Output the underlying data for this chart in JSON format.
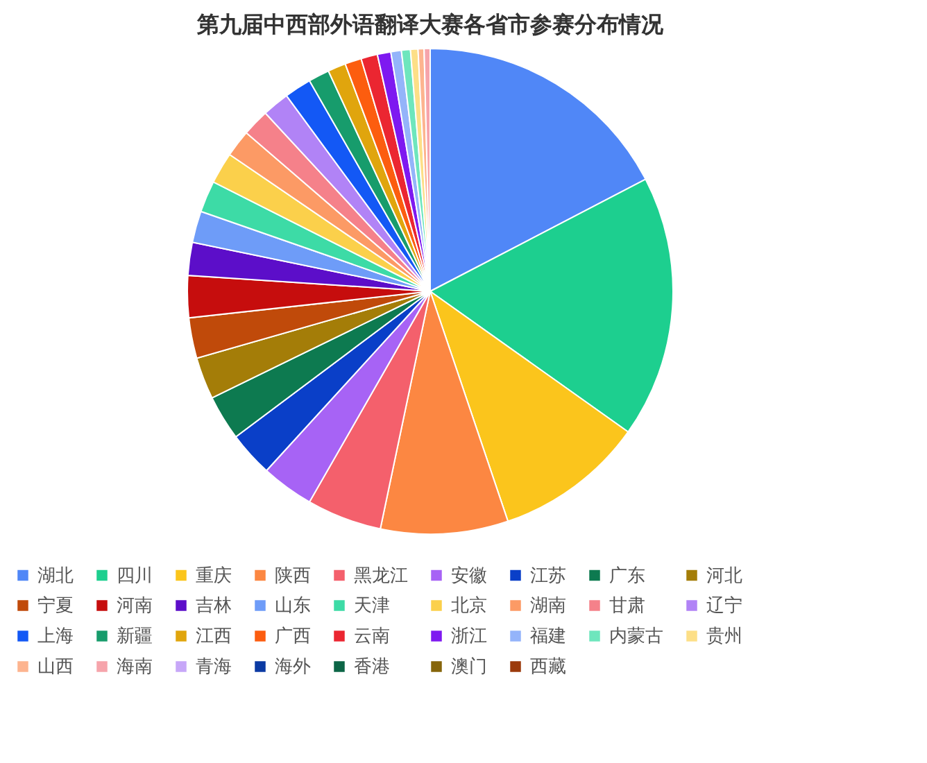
{
  "chart_data": {
    "type": "pie",
    "title": "第九届中西部外语翻译大赛各省市参赛分布情况",
    "categories": [
      "湖北",
      "四川",
      "重庆",
      "陕西",
      "黑龙江",
      "安徽",
      "江苏",
      "广东",
      "河北",
      "宁夏",
      "河南",
      "吉林",
      "山东",
      "天津",
      "北京",
      "湖南",
      "甘肃",
      "辽宁",
      "上海",
      "新疆",
      "江西",
      "广西",
      "云南",
      "浙江",
      "福建",
      "内蒙古",
      "贵州",
      "山西",
      "海南",
      "青海",
      "海外",
      "香港",
      "澳门",
      "西藏"
    ],
    "values": [
      17.4,
      17.5,
      10,
      8.5,
      5,
      3.5,
      3,
      3,
      2.8,
      2.7,
      2.8,
      2.2,
      2.1,
      2.1,
      2.1,
      1.8,
      1.8,
      1.8,
      1.8,
      1.4,
      1.2,
      1.1,
      1.1,
      0.9,
      0.7,
      0.6,
      0.5,
      0.4,
      0.4,
      0,
      0,
      0,
      0,
      0
    ],
    "colors": [
      "#5087f7",
      "#1dcf8f",
      "#fbc51c",
      "#fc8742",
      "#f4606c",
      "#a763f5",
      "#0a3fc8",
      "#0d7a50",
      "#a47d08",
      "#c04a0a",
      "#c60d0d",
      "#5c0ec9",
      "#6e9cf8",
      "#3ddba6",
      "#fbd04b",
      "#fc9a65",
      "#f5818a",
      "#b183f6",
      "#1358f5",
      "#179c6c",
      "#e0a50d",
      "#fc5d0f",
      "#eb2631",
      "#7e19f0",
      "#94b4fa",
      "#6ee6bd",
      "#fddf87",
      "#fdb48f",
      "#f6a4ab",
      "#c7a7f8",
      "#0b3aa3",
      "#0c6546",
      "#86650a",
      "#9b3a0b"
    ],
    "legend": "bottom"
  }
}
